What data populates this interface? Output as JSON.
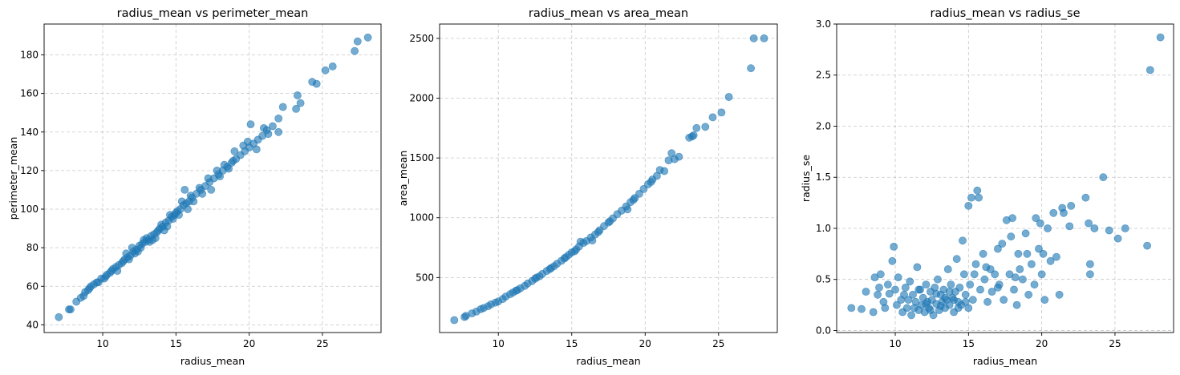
{
  "chart_data": [
    {
      "type": "scatter",
      "title": "radius_mean vs perimeter_mean",
      "xlabel": "radius_mean",
      "ylabel": "perimeter_mean",
      "xlim": [
        6.0,
        29.0
      ],
      "ylim": [
        36.0,
        196.0
      ],
      "xticks": [
        10,
        15,
        20,
        25
      ],
      "yticks": [
        40,
        60,
        80,
        100,
        120,
        140,
        160,
        180
      ],
      "grid": true,
      "color": "#1f77b4",
      "points": [
        [
          7.0,
          44
        ],
        [
          7.7,
          48
        ],
        [
          7.8,
          48
        ],
        [
          8.2,
          52
        ],
        [
          8.5,
          54
        ],
        [
          8.7,
          55
        ],
        [
          9.0,
          58
        ],
        [
          9.2,
          60
        ],
        [
          9.4,
          61
        ],
        [
          9.7,
          62
        ],
        [
          9.9,
          64
        ],
        [
          10.1,
          64
        ],
        [
          10.3,
          66
        ],
        [
          10.5,
          67
        ],
        [
          10.7,
          69
        ],
        [
          10.9,
          70
        ],
        [
          11.1,
          71
        ],
        [
          11.3,
          72
        ],
        [
          11.5,
          74
        ],
        [
          11.7,
          75
        ],
        [
          11.9,
          76
        ],
        [
          12.1,
          78
        ],
        [
          12.3,
          79
        ],
        [
          12.5,
          81
        ],
        [
          12.7,
          82
        ],
        [
          12.9,
          83
        ],
        [
          13.1,
          84
        ],
        [
          13.3,
          86
        ],
        [
          13.5,
          87
        ],
        [
          13.7,
          88
        ],
        [
          13.9,
          90
        ],
        [
          14.1,
          91
        ],
        [
          14.3,
          93
        ],
        [
          14.5,
          94
        ],
        [
          14.7,
          96
        ],
        [
          14.9,
          97
        ],
        [
          15.1,
          99
        ],
        [
          15.3,
          100
        ],
        [
          15.5,
          102
        ],
        [
          15.7,
          103
        ],
        [
          15.9,
          104
        ],
        [
          16.1,
          106
        ],
        [
          16.4,
          108
        ],
        [
          16.7,
          110
        ],
        [
          17.0,
          112
        ],
        [
          17.3,
          114
        ],
        [
          17.6,
          116
        ],
        [
          17.9,
          118
        ],
        [
          18.2,
          120
        ],
        [
          18.5,
          122
        ],
        [
          18.8,
          124
        ],
        [
          19.1,
          126
        ],
        [
          19.4,
          128
        ],
        [
          19.7,
          130
        ],
        [
          20.0,
          132
        ],
        [
          20.3,
          134
        ],
        [
          20.6,
          136
        ],
        [
          20.9,
          138
        ],
        [
          21.2,
          141
        ],
        [
          21.6,
          143
        ],
        [
          22.0,
          147
        ],
        [
          22.3,
          153
        ],
        [
          23.2,
          152
        ],
        [
          23.3,
          159
        ],
        [
          23.5,
          155
        ],
        [
          24.3,
          166
        ],
        [
          24.6,
          165
        ],
        [
          25.2,
          172
        ],
        [
          25.7,
          174
        ],
        [
          27.2,
          182
        ],
        [
          27.4,
          187
        ],
        [
          28.1,
          189
        ],
        [
          11.0,
          68
        ],
        [
          11.6,
          77
        ],
        [
          12.0,
          80
        ],
        [
          12.6,
          80
        ],
        [
          13.0,
          85
        ],
        [
          13.4,
          84
        ],
        [
          13.8,
          89
        ],
        [
          14.0,
          92
        ],
        [
          14.4,
          91
        ],
        [
          14.8,
          95
        ],
        [
          15.0,
          98
        ],
        [
          15.4,
          104
        ],
        [
          15.8,
          100
        ],
        [
          16.2,
          104
        ],
        [
          16.8,
          108
        ],
        [
          17.2,
          116
        ],
        [
          17.8,
          120
        ],
        [
          18.0,
          117
        ],
        [
          18.6,
          121
        ],
        [
          19.0,
          130
        ],
        [
          19.6,
          133
        ],
        [
          20.1,
          144
        ],
        [
          20.5,
          131
        ],
        [
          21.0,
          142
        ],
        [
          21.3,
          139
        ],
        [
          22.0,
          140
        ],
        [
          12.2,
          77
        ],
        [
          12.8,
          84
        ],
        [
          13.2,
          83
        ],
        [
          13.6,
          85
        ],
        [
          14.2,
          89
        ],
        [
          14.6,
          97
        ],
        [
          15.2,
          97
        ],
        [
          15.6,
          110
        ],
        [
          16.0,
          107
        ],
        [
          16.6,
          111
        ],
        [
          17.4,
          110
        ],
        [
          18.3,
          123
        ],
        [
          18.9,
          125
        ],
        [
          19.9,
          135
        ],
        [
          11.4,
          73
        ],
        [
          11.8,
          74
        ],
        [
          12.4,
          78
        ],
        [
          10.6,
          68
        ],
        [
          10.2,
          65
        ],
        [
          9.6,
          62
        ],
        [
          9.1,
          59
        ],
        [
          8.8,
          57
        ]
      ]
    },
    {
      "type": "scatter",
      "title": "radius_mean vs area_mean",
      "xlabel": "radius_mean",
      "ylabel": "area_mean",
      "xlim": [
        6.0,
        29.0
      ],
      "ylim": [
        40,
        2620
      ],
      "xticks": [
        10,
        15,
        20,
        25
      ],
      "yticks": [
        500,
        1000,
        1500,
        2000,
        2500
      ],
      "grid": true,
      "color": "#1f77b4",
      "points": [
        [
          7.0,
          144
        ],
        [
          7.7,
          170
        ],
        [
          7.8,
          180
        ],
        [
          8.2,
          200
        ],
        [
          8.5,
          215
        ],
        [
          8.8,
          235
        ],
        [
          9.0,
          245
        ],
        [
          9.3,
          260
        ],
        [
          9.5,
          275
        ],
        [
          9.8,
          290
        ],
        [
          10.0,
          300
        ],
        [
          10.3,
          320
        ],
        [
          10.5,
          340
        ],
        [
          10.8,
          360
        ],
        [
          11.0,
          375
        ],
        [
          11.3,
          395
        ],
        [
          11.5,
          410
        ],
        [
          11.8,
          430
        ],
        [
          12.0,
          450
        ],
        [
          12.3,
          470
        ],
        [
          12.5,
          490
        ],
        [
          12.8,
          510
        ],
        [
          13.0,
          530
        ],
        [
          13.3,
          555
        ],
        [
          13.5,
          570
        ],
        [
          13.8,
          595
        ],
        [
          14.0,
          615
        ],
        [
          14.3,
          640
        ],
        [
          14.5,
          660
        ],
        [
          14.8,
          690
        ],
        [
          15.0,
          710
        ],
        [
          15.3,
          735
        ],
        [
          15.5,
          760
        ],
        [
          15.8,
          790
        ],
        [
          16.0,
          805
        ],
        [
          16.3,
          835
        ],
        [
          16.6,
          860
        ],
        [
          16.9,
          895
        ],
        [
          17.2,
          930
        ],
        [
          17.5,
          960
        ],
        [
          17.8,
          995
        ],
        [
          18.1,
          1030
        ],
        [
          18.4,
          1060
        ],
        [
          18.7,
          1095
        ],
        [
          19.0,
          1130
        ],
        [
          19.3,
          1165
        ],
        [
          19.6,
          1200
        ],
        [
          19.9,
          1240
        ],
        [
          20.2,
          1280
        ],
        [
          20.5,
          1320
        ],
        [
          20.8,
          1350
        ],
        [
          21.0,
          1400
        ],
        [
          21.3,
          1390
        ],
        [
          21.6,
          1480
        ],
        [
          21.8,
          1540
        ],
        [
          22.0,
          1490
        ],
        [
          22.3,
          1510
        ],
        [
          23.0,
          1670
        ],
        [
          23.2,
          1680
        ],
        [
          23.3,
          1690
        ],
        [
          23.5,
          1750
        ],
        [
          24.1,
          1760
        ],
        [
          24.6,
          1840
        ],
        [
          25.2,
          1880
        ],
        [
          25.7,
          2010
        ],
        [
          27.2,
          2250
        ],
        [
          27.4,
          2500
        ],
        [
          28.1,
          2500
        ],
        [
          15.6,
          800
        ],
        [
          16.4,
          810
        ],
        [
          18.8,
          1070
        ],
        [
          20.4,
          1300
        ],
        [
          11.2,
          390
        ],
        [
          12.6,
          500
        ],
        [
          13.6,
          580
        ],
        [
          14.6,
          670
        ],
        [
          15.2,
          720
        ],
        [
          16.8,
          880
        ],
        [
          17.6,
          970
        ],
        [
          19.2,
          1150
        ]
      ]
    },
    {
      "type": "scatter",
      "title": "radius_mean vs radius_se",
      "xlabel": "radius_mean",
      "ylabel": "radius_se",
      "xlim": [
        6.0,
        29.0
      ],
      "ylim": [
        -0.02,
        3.0
      ],
      "xticks": [
        10,
        15,
        20,
        25
      ],
      "yticks": [
        0.0,
        0.5,
        1.0,
        1.5,
        2.0,
        2.5,
        3.0
      ],
      "grid": true,
      "color": "#1f77b4",
      "points": [
        [
          7.0,
          0.22
        ],
        [
          7.7,
          0.21
        ],
        [
          8.0,
          0.38
        ],
        [
          8.5,
          0.18
        ],
        [
          8.6,
          0.52
        ],
        [
          8.8,
          0.35
        ],
        [
          9.0,
          0.55
        ],
        [
          9.2,
          0.28
        ],
        [
          9.5,
          0.45
        ],
        [
          9.6,
          0.36
        ],
        [
          9.8,
          0.68
        ],
        [
          9.9,
          0.82
        ],
        [
          10.1,
          0.25
        ],
        [
          10.2,
          0.52
        ],
        [
          10.4,
          0.3
        ],
        [
          10.5,
          0.18
        ],
        [
          10.7,
          0.42
        ],
        [
          10.8,
          0.22
        ],
        [
          11.0,
          0.48
        ],
        [
          11.1,
          0.15
        ],
        [
          11.2,
          0.35
        ],
        [
          11.4,
          0.28
        ],
        [
          11.5,
          0.62
        ],
        [
          11.6,
          0.2
        ],
        [
          11.7,
          0.4
        ],
        [
          11.8,
          0.25
        ],
        [
          11.9,
          0.32
        ],
        [
          12.0,
          0.18
        ],
        [
          12.1,
          0.45
        ],
        [
          12.2,
          0.28
        ],
        [
          12.3,
          0.22
        ],
        [
          12.4,
          0.38
        ],
        [
          12.5,
          0.3
        ],
        [
          12.6,
          0.15
        ],
        [
          12.7,
          0.42
        ],
        [
          12.8,
          0.26
        ],
        [
          12.9,
          0.5
        ],
        [
          13.0,
          0.2
        ],
        [
          13.1,
          0.35
        ],
        [
          13.2,
          0.28
        ],
        [
          13.3,
          0.4
        ],
        [
          13.4,
          0.22
        ],
        [
          13.5,
          0.3
        ],
        [
          13.6,
          0.6
        ],
        [
          13.7,
          0.25
        ],
        [
          13.8,
          0.45
        ],
        [
          13.9,
          0.32
        ],
        [
          14.0,
          0.18
        ],
        [
          14.1,
          0.38
        ],
        [
          14.2,
          0.7
        ],
        [
          14.3,
          0.28
        ],
        [
          14.4,
          0.42
        ],
        [
          14.5,
          0.25
        ],
        [
          14.6,
          0.88
        ],
        [
          14.7,
          0.55
        ],
        [
          14.8,
          0.35
        ],
        [
          15.0,
          0.22
        ],
        [
          15.0,
          1.22
        ],
        [
          15.1,
          0.45
        ],
        [
          15.2,
          1.3
        ],
        [
          15.3,
          0.3
        ],
        [
          15.5,
          0.65
        ],
        [
          15.6,
          1.37
        ],
        [
          15.7,
          1.3
        ],
        [
          15.8,
          0.4
        ],
        [
          16.0,
          0.75
        ],
        [
          16.1,
          0.5
        ],
        [
          16.3,
          0.28
        ],
        [
          16.5,
          0.6
        ],
        [
          16.6,
          0.38
        ],
        [
          16.8,
          0.55
        ],
        [
          17.0,
          0.8
        ],
        [
          17.1,
          0.45
        ],
        [
          17.3,
          0.85
        ],
        [
          17.4,
          0.3
        ],
        [
          17.6,
          1.08
        ],
        [
          17.8,
          0.55
        ],
        [
          17.9,
          0.92
        ],
        [
          18.0,
          1.1
        ],
        [
          18.1,
          0.4
        ],
        [
          18.3,
          0.25
        ],
        [
          18.4,
          0.75
        ],
        [
          18.5,
          0.6
        ],
        [
          18.7,
          0.5
        ],
        [
          18.9,
          0.95
        ],
        [
          19.0,
          0.75
        ],
        [
          19.1,
          0.35
        ],
        [
          19.3,
          0.65
        ],
        [
          19.5,
          0.45
        ],
        [
          19.6,
          1.1
        ],
        [
          19.8,
          0.8
        ],
        [
          19.9,
          1.05
        ],
        [
          20.0,
          0.55
        ],
        [
          20.1,
          0.75
        ],
        [
          20.2,
          0.3
        ],
        [
          20.4,
          1.0
        ],
        [
          20.6,
          0.68
        ],
        [
          20.8,
          1.15
        ],
        [
          21.0,
          0.72
        ],
        [
          21.2,
          0.35
        ],
        [
          21.4,
          1.2
        ],
        [
          21.5,
          1.15
        ],
        [
          21.9,
          1.02
        ],
        [
          22.0,
          1.22
        ],
        [
          23.0,
          1.3
        ],
        [
          23.2,
          1.05
        ],
        [
          23.3,
          0.65
        ],
        [
          23.3,
          0.55
        ],
        [
          23.6,
          1.0
        ],
        [
          24.2,
          1.5
        ],
        [
          24.6,
          0.98
        ],
        [
          25.2,
          0.9
        ],
        [
          25.7,
          1.0
        ],
        [
          27.2,
          0.83
        ],
        [
          27.4,
          2.55
        ],
        [
          28.1,
          2.87
        ],
        [
          10.9,
          0.3
        ],
        [
          11.3,
          0.22
        ],
        [
          11.6,
          0.4
        ],
        [
          12.1,
          0.26
        ],
        [
          12.4,
          0.2
        ],
        [
          12.8,
          0.36
        ],
        [
          13.1,
          0.24
        ],
        [
          13.4,
          0.32
        ],
        [
          13.7,
          0.38
        ],
        [
          14.0,
          0.3
        ],
        [
          14.3,
          0.22
        ],
        [
          14.8,
          0.28
        ],
        [
          10.0,
          0.4
        ],
        [
          10.6,
          0.35
        ],
        [
          9.3,
          0.22
        ],
        [
          8.9,
          0.42
        ],
        [
          15.4,
          0.55
        ],
        [
          16.2,
          0.62
        ],
        [
          17.0,
          0.42
        ],
        [
          18.2,
          0.52
        ]
      ]
    }
  ]
}
